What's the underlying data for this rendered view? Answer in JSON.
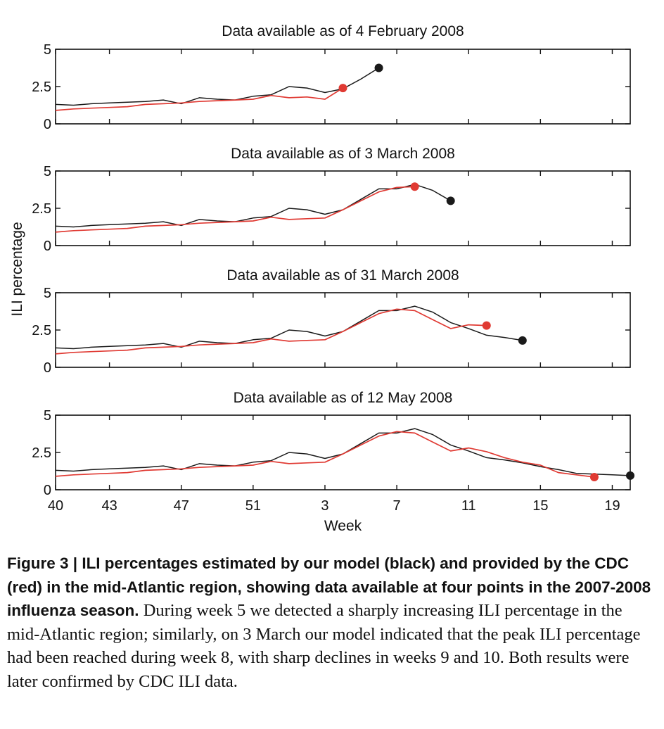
{
  "figure": {
    "ylabel": "ILI percentage",
    "xlabel": "Week",
    "colors": {
      "model": "#1a1a1a",
      "cdc": "#e03a33"
    }
  },
  "chart_data": [
    {
      "type": "line",
      "title": "Data available as of 4 February 2008",
      "x_tick_labels": [
        "40",
        "43",
        "47",
        "51",
        "3",
        "7",
        "11",
        "15",
        "19"
      ],
      "y_tick_labels": [
        "0",
        "2.5",
        "5"
      ],
      "ylim": [
        0,
        5
      ],
      "grid": false,
      "series": [
        {
          "key": "model",
          "x": [
            "40",
            "41",
            "42",
            "43",
            "44",
            "45",
            "46",
            "47",
            "48",
            "49",
            "50",
            "51",
            "52",
            "1",
            "2",
            "3",
            "4",
            "5",
            "6"
          ],
          "values": [
            1.3,
            1.25,
            1.35,
            1.4,
            1.45,
            1.5,
            1.6,
            1.35,
            1.75,
            1.65,
            1.6,
            1.85,
            1.95,
            2.5,
            2.4,
            2.1,
            2.35,
            3.0,
            3.75
          ]
        },
        {
          "key": "cdc",
          "x": [
            "40",
            "41",
            "42",
            "43",
            "44",
            "45",
            "46",
            "47",
            "48",
            "49",
            "50",
            "51",
            "52",
            "1",
            "2",
            "3",
            "4"
          ],
          "values": [
            0.9,
            1.0,
            1.05,
            1.1,
            1.15,
            1.3,
            1.35,
            1.4,
            1.5,
            1.55,
            1.6,
            1.65,
            1.9,
            1.75,
            1.8,
            1.65,
            2.4
          ]
        }
      ]
    },
    {
      "type": "line",
      "title": "Data available as of 3 March 2008",
      "x_tick_labels": [
        "40",
        "43",
        "47",
        "51",
        "3",
        "7",
        "11",
        "15",
        "19"
      ],
      "y_tick_labels": [
        "0",
        "2.5",
        "5"
      ],
      "ylim": [
        0,
        5
      ],
      "grid": false,
      "series": [
        {
          "key": "model",
          "x": [
            "40",
            "41",
            "42",
            "43",
            "44",
            "45",
            "46",
            "47",
            "48",
            "49",
            "50",
            "51",
            "52",
            "1",
            "2",
            "3",
            "4",
            "5",
            "6",
            "7",
            "8",
            "9",
            "10"
          ],
          "values": [
            1.3,
            1.25,
            1.35,
            1.4,
            1.45,
            1.5,
            1.6,
            1.35,
            1.75,
            1.65,
            1.6,
            1.85,
            1.95,
            2.5,
            2.4,
            2.1,
            2.4,
            3.1,
            3.8,
            3.8,
            4.1,
            3.7,
            3.0
          ]
        },
        {
          "key": "cdc",
          "x": [
            "40",
            "41",
            "42",
            "43",
            "44",
            "45",
            "46",
            "47",
            "48",
            "49",
            "50",
            "51",
            "52",
            "1",
            "2",
            "3",
            "4",
            "5",
            "6",
            "7",
            "8"
          ],
          "values": [
            0.9,
            1.0,
            1.05,
            1.1,
            1.15,
            1.3,
            1.35,
            1.4,
            1.5,
            1.55,
            1.6,
            1.65,
            1.9,
            1.75,
            1.8,
            1.85,
            2.4,
            3.0,
            3.6,
            3.9,
            3.95
          ]
        }
      ]
    },
    {
      "type": "line",
      "title": "Data available as of 31 March 2008",
      "x_tick_labels": [
        "40",
        "43",
        "47",
        "51",
        "3",
        "7",
        "11",
        "15",
        "19"
      ],
      "y_tick_labels": [
        "0",
        "2.5",
        "5"
      ],
      "ylim": [
        0,
        5
      ],
      "grid": false,
      "series": [
        {
          "key": "model",
          "x": [
            "40",
            "41",
            "42",
            "43",
            "44",
            "45",
            "46",
            "47",
            "48",
            "49",
            "50",
            "51",
            "52",
            "1",
            "2",
            "3",
            "4",
            "5",
            "6",
            "7",
            "8",
            "9",
            "10",
            "11",
            "12",
            "13",
            "14"
          ],
          "values": [
            1.3,
            1.25,
            1.35,
            1.4,
            1.45,
            1.5,
            1.6,
            1.35,
            1.75,
            1.65,
            1.6,
            1.85,
            1.95,
            2.5,
            2.4,
            2.1,
            2.4,
            3.1,
            3.8,
            3.8,
            4.1,
            3.7,
            3.0,
            2.6,
            2.15,
            2.0,
            1.8
          ]
        },
        {
          "key": "cdc",
          "x": [
            "40",
            "41",
            "42",
            "43",
            "44",
            "45",
            "46",
            "47",
            "48",
            "49",
            "50",
            "51",
            "52",
            "1",
            "2",
            "3",
            "4",
            "5",
            "6",
            "7",
            "8",
            "9",
            "10",
            "11",
            "12"
          ],
          "values": [
            0.9,
            1.0,
            1.05,
            1.1,
            1.15,
            1.3,
            1.35,
            1.4,
            1.5,
            1.55,
            1.6,
            1.65,
            1.9,
            1.75,
            1.8,
            1.85,
            2.4,
            3.0,
            3.6,
            3.9,
            3.8,
            3.2,
            2.6,
            2.85,
            2.8
          ]
        }
      ]
    },
    {
      "type": "line",
      "title": "Data available as of 12 May 2008",
      "x_tick_labels": [
        "40",
        "43",
        "47",
        "51",
        "3",
        "7",
        "11",
        "15",
        "19"
      ],
      "y_tick_labels": [
        "0",
        "2.5",
        "5"
      ],
      "ylim": [
        0,
        5
      ],
      "grid": false,
      "series": [
        {
          "key": "model",
          "x": [
            "40",
            "41",
            "42",
            "43",
            "44",
            "45",
            "46",
            "47",
            "48",
            "49",
            "50",
            "51",
            "52",
            "1",
            "2",
            "3",
            "4",
            "5",
            "6",
            "7",
            "8",
            "9",
            "10",
            "11",
            "12",
            "13",
            "14",
            "15",
            "16",
            "17",
            "18",
            "19",
            "20"
          ],
          "values": [
            1.3,
            1.25,
            1.35,
            1.4,
            1.45,
            1.5,
            1.6,
            1.35,
            1.75,
            1.65,
            1.6,
            1.85,
            1.95,
            2.5,
            2.4,
            2.1,
            2.4,
            3.1,
            3.8,
            3.8,
            4.1,
            3.7,
            3.0,
            2.6,
            2.15,
            2.0,
            1.8,
            1.55,
            1.35,
            1.1,
            1.05,
            1.0,
            0.95
          ]
        },
        {
          "key": "cdc",
          "x": [
            "40",
            "41",
            "42",
            "43",
            "44",
            "45",
            "46",
            "47",
            "48",
            "49",
            "50",
            "51",
            "52",
            "1",
            "2",
            "3",
            "4",
            "5",
            "6",
            "7",
            "8",
            "9",
            "10",
            "11",
            "12",
            "13",
            "14",
            "15",
            "16",
            "17",
            "18"
          ],
          "values": [
            0.9,
            1.0,
            1.05,
            1.1,
            1.15,
            1.3,
            1.35,
            1.4,
            1.5,
            1.55,
            1.6,
            1.65,
            1.9,
            1.75,
            1.8,
            1.85,
            2.4,
            3.0,
            3.6,
            3.9,
            3.8,
            3.2,
            2.6,
            2.8,
            2.55,
            2.15,
            1.85,
            1.65,
            1.15,
            1.0,
            0.85
          ]
        }
      ]
    }
  ],
  "caption": {
    "bold": "Figure 3 | ILI percentages estimated by our model (black) and provided by the CDC (red) in the mid-Atlantic region, showing data available at four points in the 2007-2008 influenza season.",
    "text": "During week 5 we detected a sharply increasing ILI percentage in the mid-Atlantic region; similarly, on 3 March our model indicated that the peak ILI percentage had been reached during week 8, with sharp declines in weeks 9 and 10. Both results were later confirmed by CDC ILI data."
  }
}
